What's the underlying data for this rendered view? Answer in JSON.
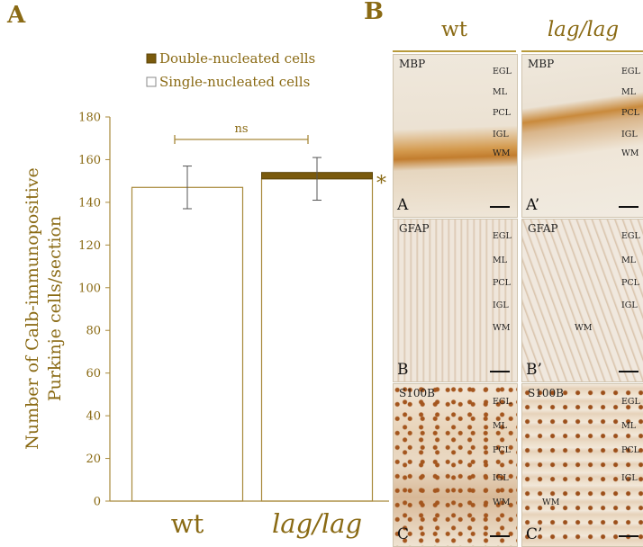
{
  "panel_a_letter": "A",
  "panel_b_letter": "B",
  "chart_data": {
    "type": "bar",
    "stacked": true,
    "categories": [
      "wt",
      "lag/lag"
    ],
    "category_italic": [
      false,
      true
    ],
    "series": [
      {
        "name": "Single-nucleated cells",
        "values": [
          147,
          151
        ],
        "errors": [
          10,
          10
        ],
        "color": "#ffffff"
      },
      {
        "name": "Double-nucleated cells",
        "values": [
          0,
          3
        ],
        "color": "#7a5a0c"
      }
    ],
    "ylabel": "Number of Calb-immunopositive Purkinje cells/section",
    "ylabel_lines": [
      "Number of Calb-immunopositive",
      "Purkinje cells/section"
    ],
    "ylim": [
      0,
      180
    ],
    "yticks": [
      0,
      20,
      40,
      60,
      80,
      100,
      120,
      140,
      160,
      180
    ],
    "legend_position": "top",
    "significance": {
      "bracket_label": "ns",
      "marker": "*"
    },
    "grid": false
  },
  "micrographs": {
    "columns": [
      {
        "title": "wt",
        "italic": false
      },
      {
        "title": "lag/lag",
        "italic": true
      }
    ],
    "rows": [
      {
        "stain": "MBP",
        "labels": [
          "A",
          "A’"
        ],
        "color": "#c98a3c",
        "layers_left": [
          "EGL",
          "ML",
          "PCL",
          "IGL",
          "WM"
        ],
        "layers_right": [
          "EGL",
          "ML",
          "PCL",
          "IGL",
          "WM"
        ]
      },
      {
        "stain": "GFAP",
        "labels": [
          "B",
          "B’"
        ],
        "color": "#b88f66",
        "layers_left": [
          "EGL",
          "ML",
          "PCL",
          "IGL",
          "WM"
        ],
        "layers_right": [
          "EGL",
          "ML",
          "PCL",
          "IGL",
          "WM"
        ]
      },
      {
        "stain": "S100B",
        "labels": [
          "C",
          "C’"
        ],
        "color": "#b0622a",
        "layers_left": [
          "EGL",
          "ML",
          "PCL",
          "IGL",
          "WM"
        ],
        "layers_right": [
          "EGL",
          "ML",
          "PCL",
          "IGL",
          "WM"
        ]
      }
    ]
  }
}
